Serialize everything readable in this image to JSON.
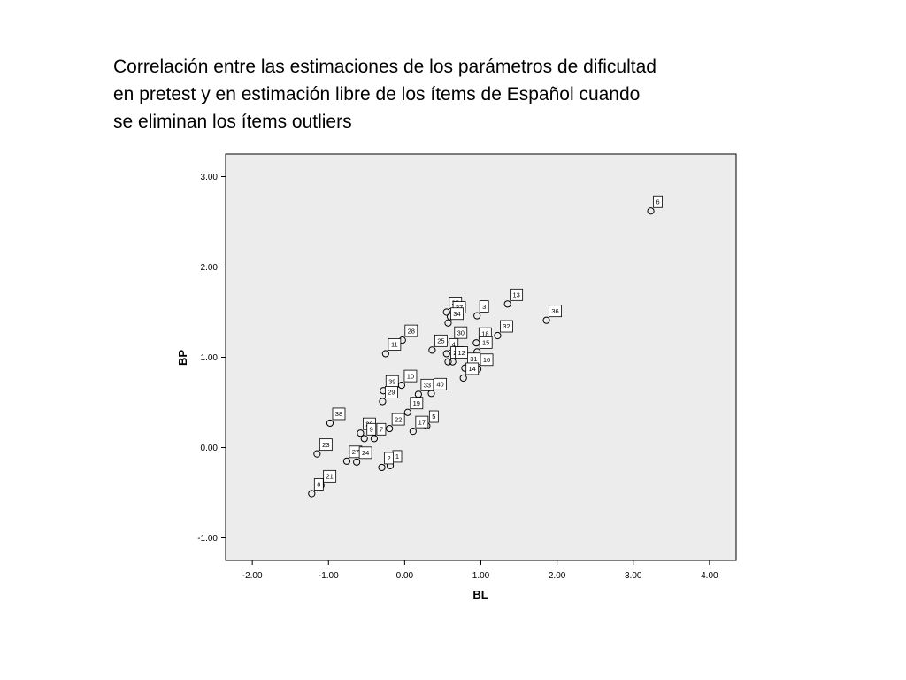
{
  "title_lines": [
    "Correlación entre las estimaciones de los parámetros de dificultad",
    "en pretest y en estimación libre de los ítems de Español cuando",
    "se eliminan los ítems outliers"
  ],
  "chart_data": {
    "type": "scatter",
    "title": "Correlación entre las estimaciones de los parámetros de dificultad en pretest y en estimación libre de los ítems de Español cuando se eliminan los ítems outliers",
    "xlabel": "BL",
    "ylabel": "BP",
    "xlim": [
      -2.35,
      4.35
    ],
    "ylim": [
      -1.25,
      3.25
    ],
    "xticks": [
      -2.0,
      -1.0,
      0.0,
      1.0,
      2.0,
      3.0,
      4.0
    ],
    "xtick_labels": [
      "-2.00",
      "-1.00",
      "0.00",
      "1.00",
      "2.00",
      "3.00",
      "4.00"
    ],
    "yticks": [
      -1.0,
      0.0,
      1.0,
      2.0,
      3.0
    ],
    "ytick_labels": [
      "-1.00",
      "0.00",
      "1.00",
      "2.00",
      "3.00"
    ],
    "grid": false,
    "plot_background": "#ececec",
    "points": [
      {
        "label": "6",
        "x": 3.23,
        "y": 2.62
      },
      {
        "label": "13",
        "x": 1.35,
        "y": 1.59
      },
      {
        "label": "36",
        "x": 1.86,
        "y": 1.41
      },
      {
        "label": "35",
        "x": 0.55,
        "y": 1.5
      },
      {
        "label": "37",
        "x": 0.6,
        "y": 1.45
      },
      {
        "label": "3",
        "x": 0.95,
        "y": 1.46
      },
      {
        "label": "32",
        "x": 1.22,
        "y": 1.24
      },
      {
        "label": "28",
        "x": -0.03,
        "y": 1.19
      },
      {
        "label": "11",
        "x": -0.25,
        "y": 1.04
      },
      {
        "label": "34",
        "x": 0.57,
        "y": 1.38
      },
      {
        "label": "30",
        "x": 0.62,
        "y": 1.17
      },
      {
        "label": "18",
        "x": 0.94,
        "y": 1.16
      },
      {
        "label": "25",
        "x": 0.36,
        "y": 1.08
      },
      {
        "label": "15",
        "x": 0.95,
        "y": 1.06
      },
      {
        "label": "4",
        "x": 0.55,
        "y": 1.04
      },
      {
        "label": "26",
        "x": 0.57,
        "y": 0.95
      },
      {
        "label": "16",
        "x": 0.96,
        "y": 0.87
      },
      {
        "label": "12",
        "x": 0.63,
        "y": 0.95
      },
      {
        "label": "31",
        "x": 0.79,
        "y": 0.88
      },
      {
        "label": "14",
        "x": 0.77,
        "y": 0.77
      },
      {
        "label": "10",
        "x": -0.04,
        "y": 0.69
      },
      {
        "label": "39",
        "x": -0.28,
        "y": 0.63
      },
      {
        "label": "40",
        "x": 0.35,
        "y": 0.6
      },
      {
        "label": "33",
        "x": 0.18,
        "y": 0.59
      },
      {
        "label": "19",
        "x": 0.04,
        "y": 0.39
      },
      {
        "label": "29",
        "x": -0.29,
        "y": 0.51
      },
      {
        "label": "5",
        "x": 0.29,
        "y": 0.24
      },
      {
        "label": "22",
        "x": -0.2,
        "y": 0.21
      },
      {
        "label": "17",
        "x": 0.11,
        "y": 0.18
      },
      {
        "label": "7",
        "x": -0.4,
        "y": 0.1
      },
      {
        "label": "38",
        "x": -0.98,
        "y": 0.27
      },
      {
        "label": "20",
        "x": -0.58,
        "y": 0.16
      },
      {
        "label": "9",
        "x": -0.53,
        "y": 0.1
      },
      {
        "label": "23",
        "x": -1.15,
        "y": -0.07
      },
      {
        "label": "27",
        "x": -0.76,
        "y": -0.15
      },
      {
        "label": "24",
        "x": -0.63,
        "y": -0.16
      },
      {
        "label": "1",
        "x": -0.19,
        "y": -0.2
      },
      {
        "label": "2",
        "x": -0.3,
        "y": -0.22
      },
      {
        "label": "21",
        "x": -1.1,
        "y": -0.42
      },
      {
        "label": "8",
        "x": -1.22,
        "y": -0.51
      }
    ]
  }
}
